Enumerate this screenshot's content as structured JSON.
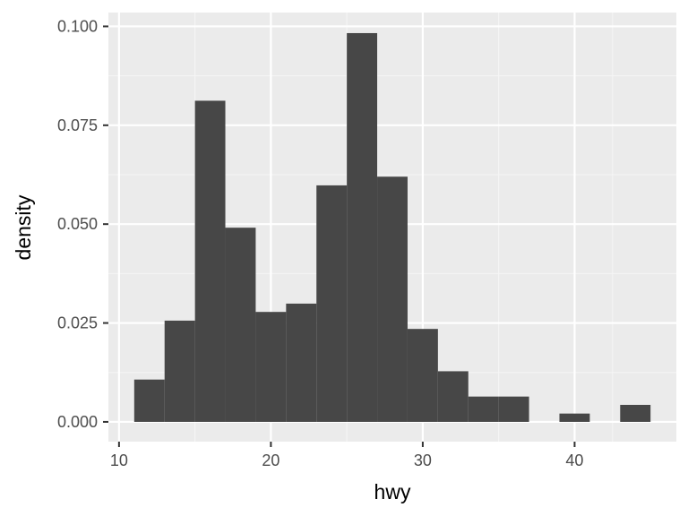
{
  "chart_data": {
    "type": "bar",
    "subtype": "histogram",
    "title": "",
    "xlabel": "hwy",
    "ylabel": "density",
    "xlim": [
      9.3,
      46.7
    ],
    "ylim": [
      -0.005,
      0.1035
    ],
    "x_ticks": [
      10,
      20,
      30,
      40
    ],
    "y_ticks": [
      0.0,
      0.025,
      0.05,
      0.075,
      0.1
    ],
    "x_tick_labels": [
      "10",
      "20",
      "30",
      "40"
    ],
    "y_tick_labels": [
      "0.000",
      "0.025",
      "0.050",
      "0.075",
      "0.100"
    ],
    "grid": true,
    "bin_width": 2,
    "bins": [
      {
        "x0": 11,
        "x1": 13,
        "density": 0.0107
      },
      {
        "x0": 13,
        "x1": 15,
        "density": 0.0256
      },
      {
        "x0": 15,
        "x1": 17,
        "density": 0.0812
      },
      {
        "x0": 17,
        "x1": 19,
        "density": 0.0491
      },
      {
        "x0": 19,
        "x1": 21,
        "density": 0.0278
      },
      {
        "x0": 21,
        "x1": 23,
        "density": 0.0299
      },
      {
        "x0": 23,
        "x1": 25,
        "density": 0.0598
      },
      {
        "x0": 25,
        "x1": 27,
        "density": 0.0983
      },
      {
        "x0": 27,
        "x1": 29,
        "density": 0.062
      },
      {
        "x0": 29,
        "x1": 31,
        "density": 0.0235
      },
      {
        "x0": 31,
        "x1": 33,
        "density": 0.0128
      },
      {
        "x0": 33,
        "x1": 35,
        "density": 0.0064
      },
      {
        "x0": 35,
        "x1": 37,
        "density": 0.0064
      },
      {
        "x0": 37,
        "x1": 39,
        "density": 0.0
      },
      {
        "x0": 39,
        "x1": 41,
        "density": 0.0021
      },
      {
        "x0": 41,
        "x1": 43,
        "density": 0.0
      },
      {
        "x0": 43,
        "x1": 45,
        "density": 0.0043
      }
    ],
    "colors": {
      "panel": "#ebebeb",
      "grid_major": "#ffffff",
      "grid_minor": "#f5f5f5",
      "bar": "#474747",
      "tick": "#333333"
    }
  }
}
